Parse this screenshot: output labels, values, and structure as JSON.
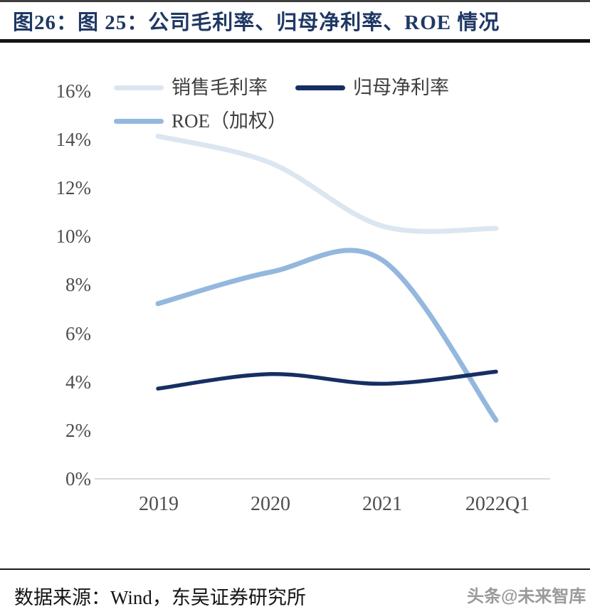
{
  "title": {
    "text": "图26：图 25：公司毛利率、归母净利率、ROE 情况"
  },
  "chart_data": {
    "type": "line",
    "categories": [
      "2019",
      "2020",
      "2021",
      "2022Q1"
    ],
    "series": [
      {
        "name": "销售毛利率",
        "color": "#dce6f1",
        "values": [
          14.1,
          13.0,
          10.4,
          10.3
        ]
      },
      {
        "name": "归母净利率",
        "color": "#162f63",
        "values": [
          3.7,
          4.3,
          3.9,
          4.4
        ]
      },
      {
        "name": "ROE（加权）",
        "color": "#94b7de",
        "values": [
          7.2,
          8.5,
          9.0,
          2.4
        ]
      }
    ],
    "title": "公司毛利率、归母净利率、ROE 情况",
    "xlabel": "",
    "ylabel": "",
    "ylim": [
      0,
      16
    ],
    "y_tick_step": 2,
    "y_tick_labels": [
      "16%",
      "14%",
      "12%",
      "10%",
      "8%",
      "6%",
      "4%",
      "2%",
      "0%"
    ],
    "grid": false,
    "smooth": true,
    "legend_position": "top-left"
  },
  "axis_colors": {
    "axis_line": "#d8d8d8",
    "tick_text": "#4d4d4d"
  },
  "footer": {
    "source_label": "数据来源：Wind，东吴证券研究所",
    "watermark": "头条@未来智库"
  }
}
